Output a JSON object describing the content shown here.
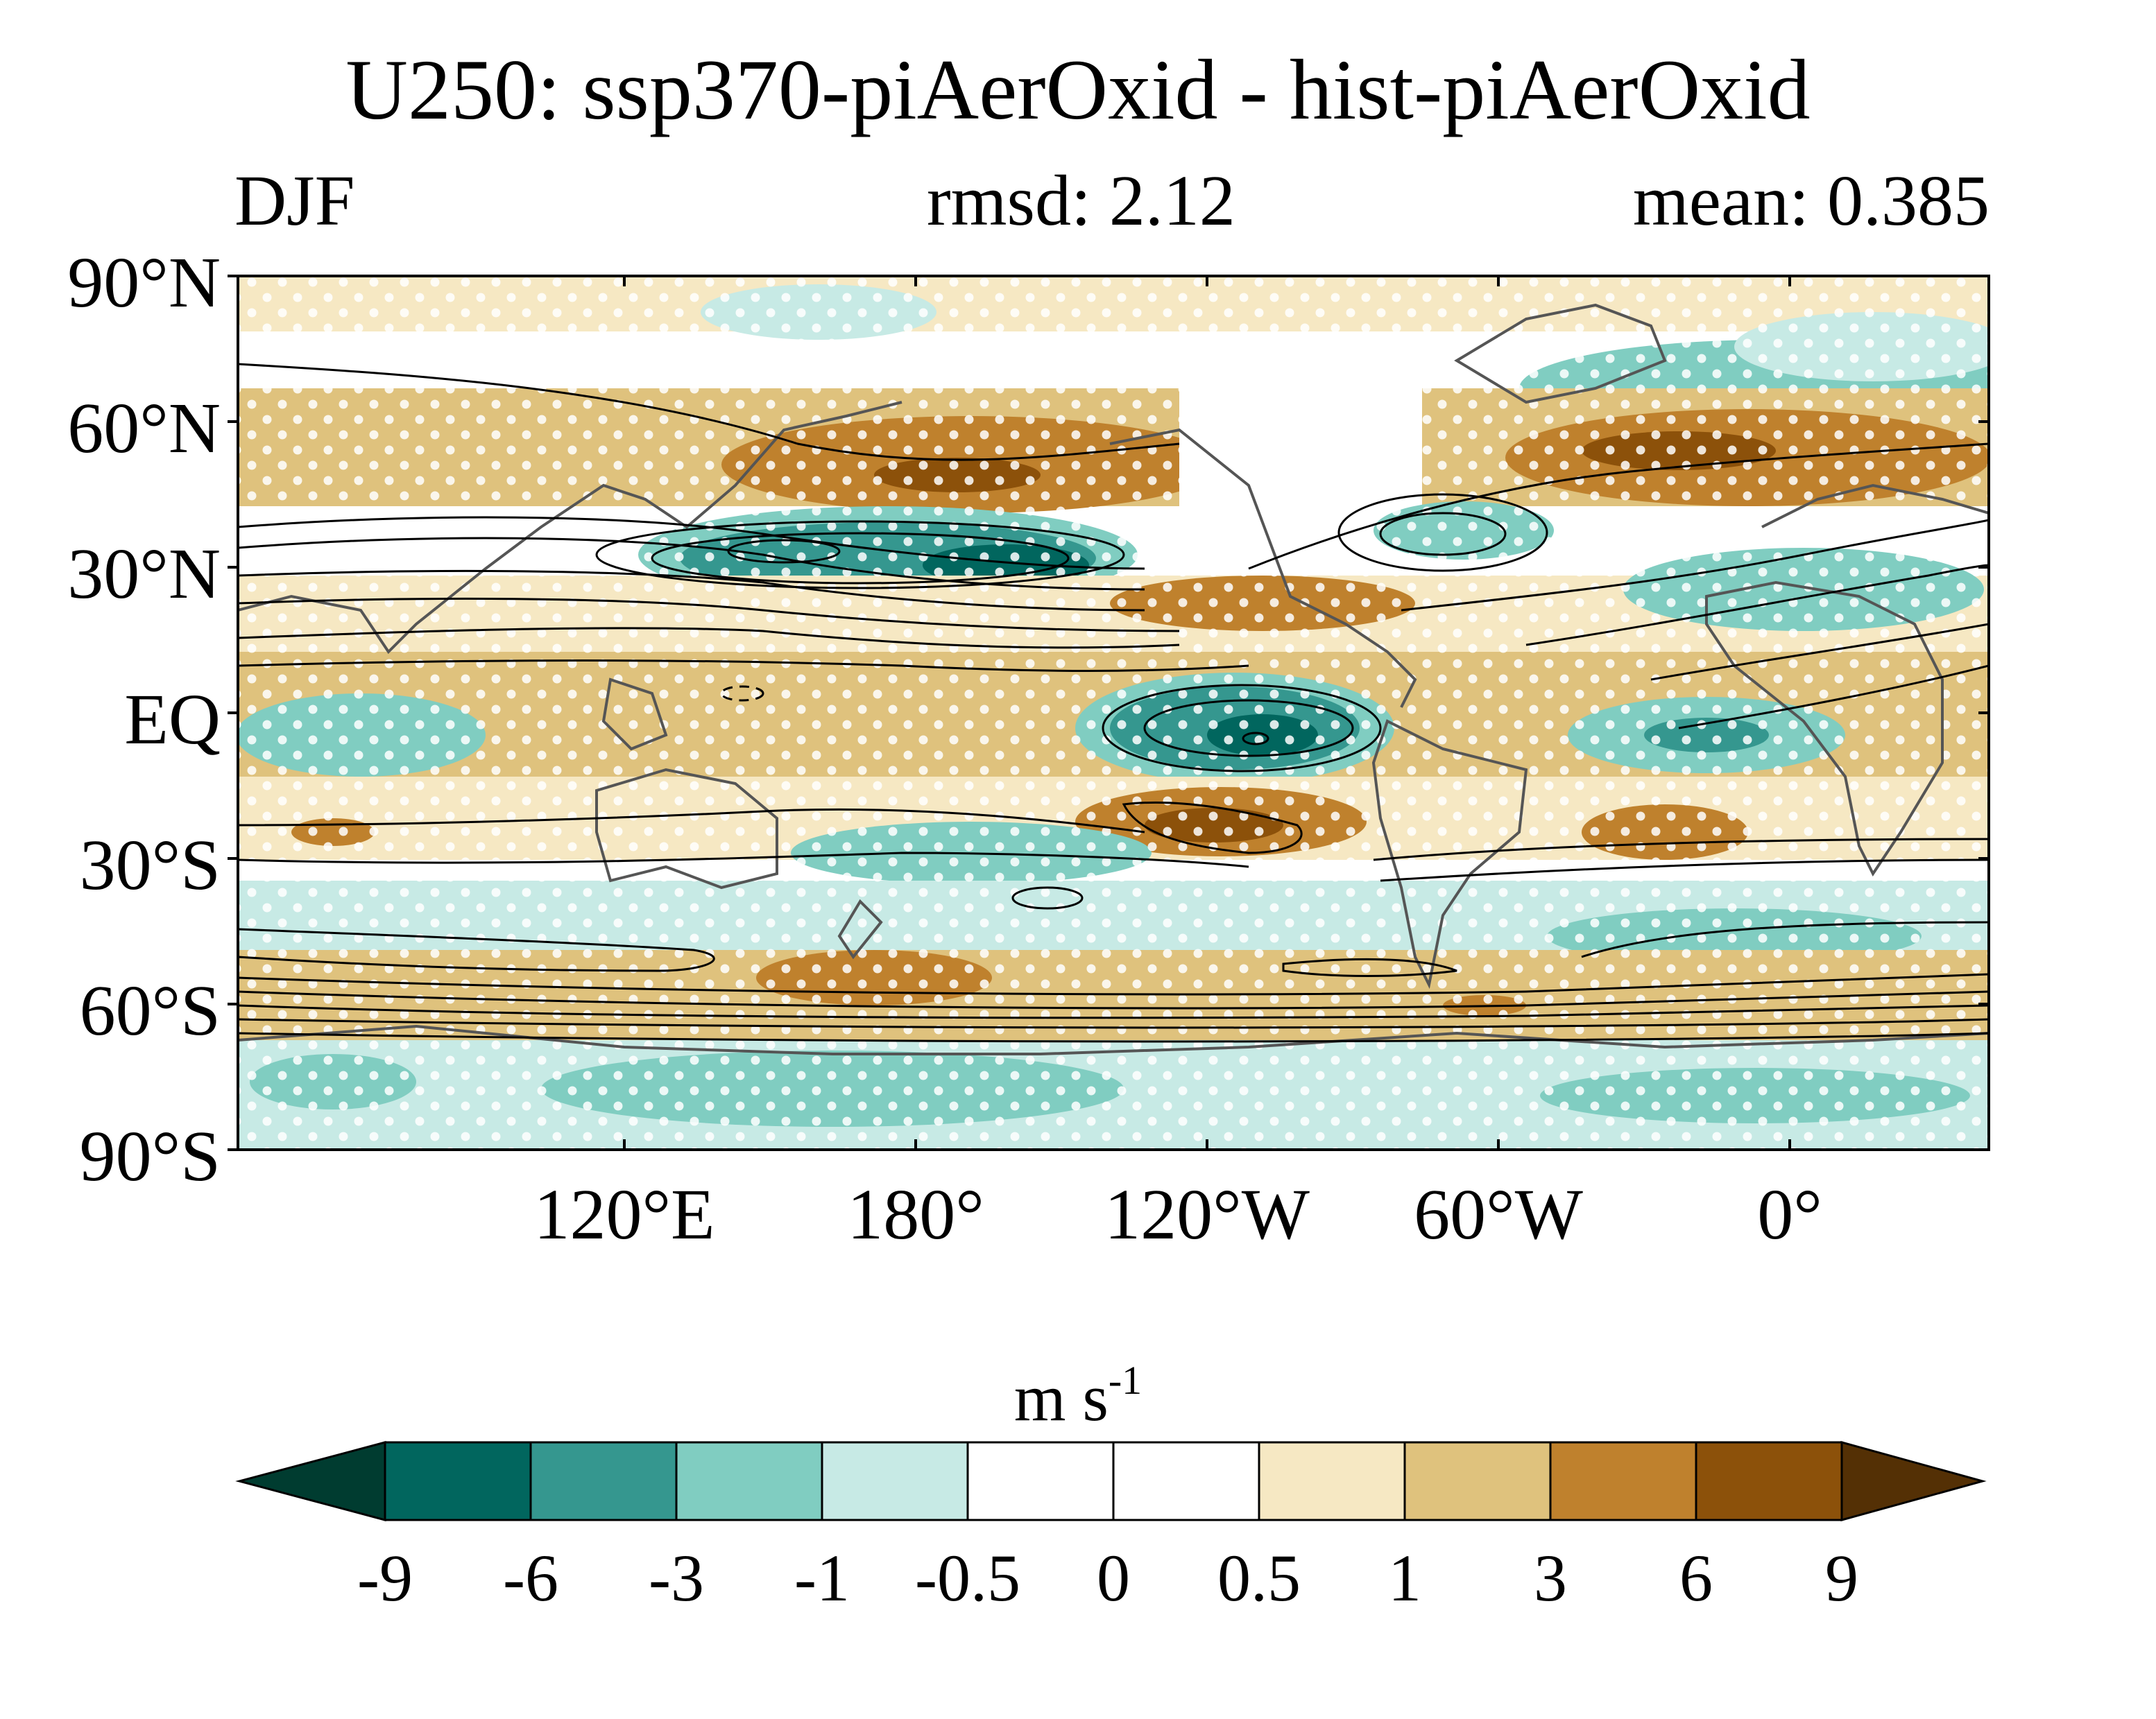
{
  "title": "U250: ssp370-piAerOxid - hist-piAerOxid",
  "season": "DJF",
  "rmsd": "rmsd: 2.12",
  "mean": "mean: 0.385",
  "lat_labels": [
    "90°N",
    "60°N",
    "30°N",
    "EQ",
    "30°S",
    "60°S",
    "90°S"
  ],
  "lon_labels": [
    "120°E",
    "180°",
    "120°W",
    "60°W",
    "0°"
  ],
  "colorbar": {
    "units_base": "m s",
    "units_exp": "-1",
    "tick_labels": [
      "-9",
      "-6",
      "-3",
      "-1",
      "-0.5",
      "0",
      "0.5",
      "1",
      "3",
      "6",
      "9"
    ],
    "colors": [
      "#01665e",
      "#35978f",
      "#80cdc1",
      "#c7eae5",
      "#ffffff",
      "#ffffff",
      "#f6e8c3",
      "#dfc27d",
      "#bf812d",
      "#8c510a"
    ],
    "low_extend_color": "#003c30",
    "high_extend_color": "#543005"
  },
  "colors": {
    "continent_outline": "#555555",
    "contour": "#000000",
    "stipple": "#ffffff"
  }
}
